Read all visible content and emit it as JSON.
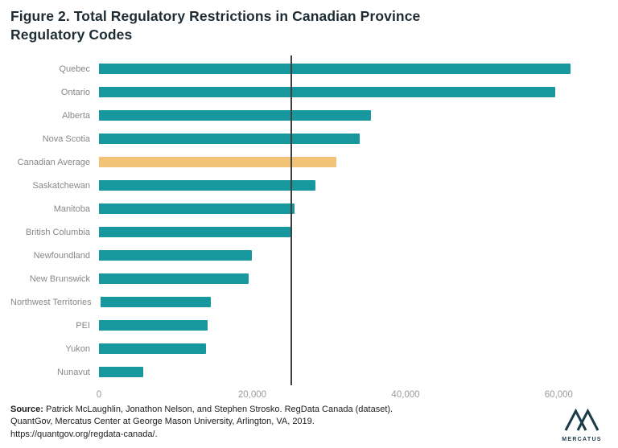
{
  "title": "Figure 2. Total Regulatory Restrictions in Canadian Province Regulatory Codes",
  "chart_data": {
    "type": "bar",
    "orientation": "horizontal",
    "title": "Figure 2. Total Regulatory Restrictions in Canadian Province Regulatory Codes",
    "xlabel": "",
    "ylabel": "",
    "xlim": [
      0,
      65000
    ],
    "x_ticks": [
      0,
      20000,
      40000,
      60000
    ],
    "x_tick_labels": [
      "0",
      "20,000",
      "40,000",
      "60,000"
    ],
    "grid": false,
    "legend": false,
    "categories": [
      "Quebec",
      "Ontario",
      "Alberta",
      "Nova Scotia",
      "Canadian Average",
      "Saskatchewan",
      "Manitoba",
      "British Columbia",
      "Newfoundland",
      "New Brunswick",
      "Northwest Territories",
      "PEI",
      "Yukon",
      "Nunavut"
    ],
    "values": [
      61500,
      59500,
      35500,
      34000,
      31000,
      28200,
      25500,
      25000,
      20000,
      19500,
      14500,
      14200,
      14000,
      5800
    ],
    "bar_color": "#16989e",
    "highlight_category": "Canadian Average",
    "highlight_color": "#f2c377",
    "reference_line": {
      "value": 25000,
      "color": "#3f3f3f"
    }
  },
  "source": {
    "label": "Source:",
    "line1_rest": " Patrick McLaughlin, Jonathon Nelson, and Stephen Strosko. RegData Canada (dataset).",
    "line2": "QuantGov, Mercatus Center at George Mason University, Arlington, VA, 2019.",
    "line3": "https://quantgov.org/regdata-canada/."
  },
  "logo": {
    "text": "MERCATUS",
    "color": "#1c3b49"
  }
}
